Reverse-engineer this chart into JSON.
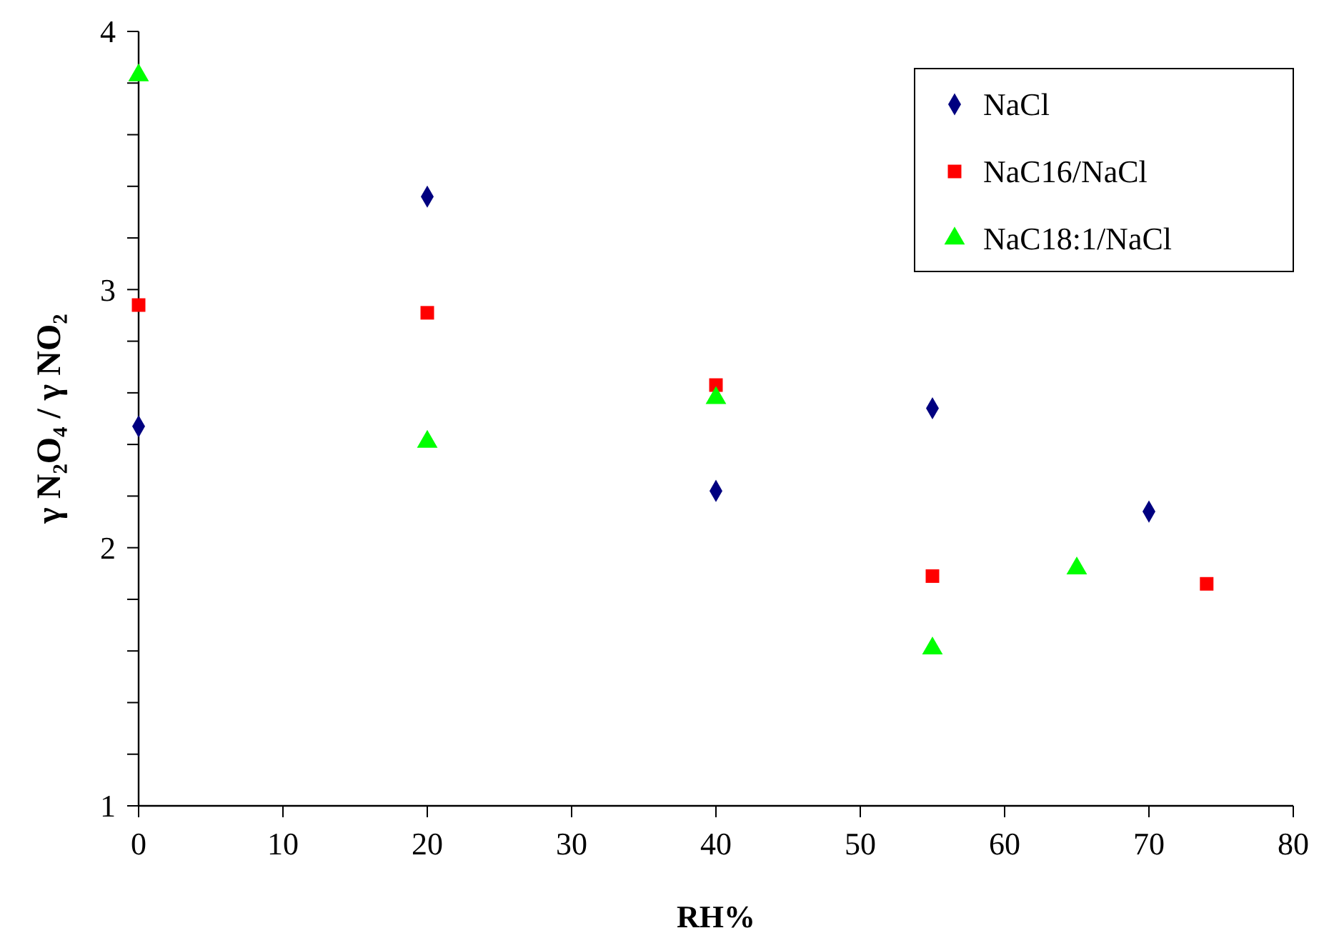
{
  "chart_data": {
    "type": "scatter",
    "xlabel": "RH%",
    "ylabel": "γ N₂O₄ / γ NO₂",
    "xlim": [
      0,
      80
    ],
    "xticks": [
      0,
      10,
      20,
      30,
      40,
      50,
      60,
      70,
      80
    ],
    "ylim": [
      1,
      4
    ],
    "yticks": [
      1,
      {
        "value": 1.2,
        "label": null
      },
      {
        "value": 1.4,
        "label": null
      },
      {
        "value": 1.6,
        "label": null
      },
      {
        "value": 1.8,
        "label": null
      },
      2,
      {
        "value": 2.2,
        "label": null
      },
      {
        "value": 2.4,
        "label": null
      },
      {
        "value": 2.6,
        "label": null
      },
      {
        "value": 2.8,
        "label": null
      },
      3,
      {
        "value": 3.2,
        "label": null
      },
      {
        "value": 3.4,
        "label": null
      },
      {
        "value": 3.6,
        "label": null
      },
      {
        "value": 3.8,
        "label": null
      },
      4
    ],
    "grid": false,
    "legend": "top right",
    "series": [
      {
        "name": "NaCl",
        "color": "#000080",
        "marker": "diamond",
        "x": [
          0,
          20,
          40,
          55,
          70
        ],
        "values": [
          2.47,
          3.36,
          2.22,
          2.54,
          2.14
        ]
      },
      {
        "name": "NaC16/NaCl",
        "color": "#ff0000",
        "marker": "square",
        "x": [
          0,
          20,
          40,
          55,
          74
        ],
        "values": [
          2.94,
          2.91,
          2.63,
          1.89,
          1.86
        ]
      },
      {
        "name": "NaC18:1/NaCl",
        "color": "#00ff00",
        "marker": "triangle",
        "x": [
          0,
          20,
          40,
          55,
          65
        ],
        "values": [
          3.83,
          2.41,
          2.58,
          1.61,
          1.92
        ]
      }
    ]
  }
}
